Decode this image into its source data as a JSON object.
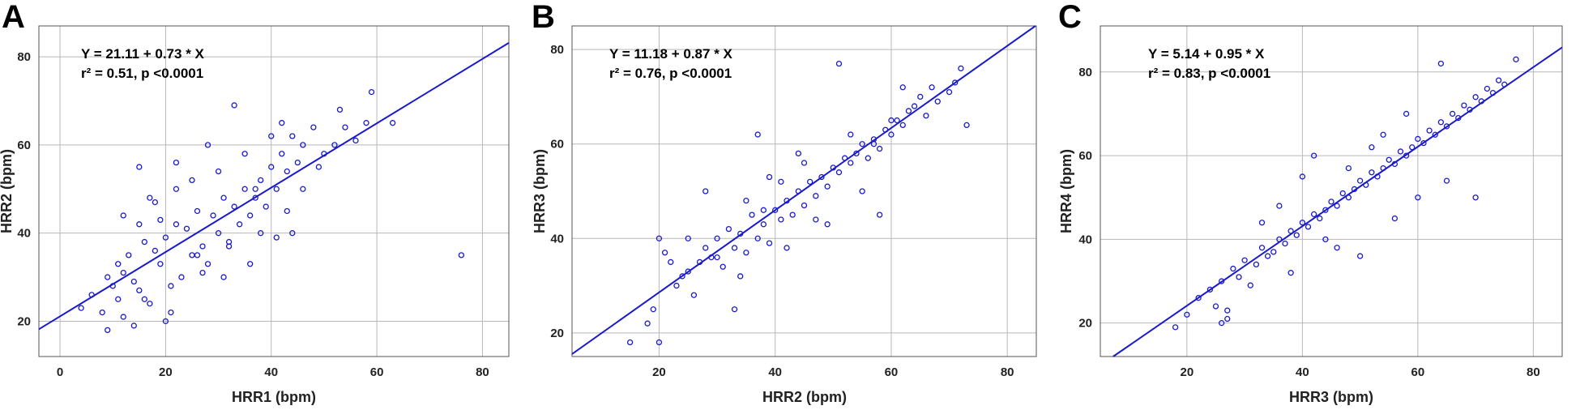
{
  "style": {
    "point_color": "#1a1acd",
    "line_color": "#1a1acd"
  },
  "chart_data": [
    {
      "type": "scatter",
      "panel_label": "A",
      "xlabel": "HRR1 (bpm)",
      "ylabel": "HRR2 (bpm)",
      "xlim": [
        -4,
        85
      ],
      "ylim": [
        12,
        87
      ],
      "xticks": [
        0,
        20,
        40,
        60,
        80
      ],
      "yticks": [
        20,
        40,
        60,
        80
      ],
      "grid": true,
      "annotations": [
        "Y = 21.11 + 0.73 * X",
        "r² = 0.51, p <0.0001"
      ],
      "fit": {
        "intercept": 21.11,
        "slope": 0.73
      },
      "points": {
        "x": [
          4,
          6,
          8,
          9,
          10,
          11,
          11,
          12,
          13,
          14,
          15,
          16,
          17,
          18,
          19,
          20,
          21,
          22,
          23,
          24,
          25,
          26,
          27,
          28,
          29,
          30,
          31,
          32,
          33,
          34,
          35,
          36,
          37,
          38,
          39,
          40,
          41,
          42,
          43,
          44,
          45,
          46,
          48,
          50,
          52,
          54,
          56,
          58,
          59,
          63,
          76,
          44,
          33,
          20,
          14,
          12,
          9,
          15,
          17,
          19,
          22,
          25,
          28,
          30,
          35,
          37,
          40,
          42,
          12,
          15,
          18,
          22,
          26,
          31,
          36,
          41,
          46,
          53,
          16,
          21,
          27,
          32,
          38,
          43,
          49
        ],
        "y": [
          23,
          26,
          22,
          30,
          28,
          25,
          33,
          31,
          35,
          29,
          27,
          38,
          24,
          36,
          33,
          39,
          22,
          42,
          30,
          41,
          35,
          45,
          37,
          33,
          44,
          40,
          48,
          38,
          46,
          42,
          50,
          44,
          48,
          52,
          46,
          55,
          50,
          58,
          54,
          62,
          56,
          60,
          64,
          58,
          60,
          64,
          61,
          65,
          72,
          65,
          35,
          40,
          69,
          20,
          19,
          21,
          18,
          55,
          48,
          43,
          56,
          52,
          60,
          54,
          58,
          50,
          62,
          65,
          44,
          42,
          47,
          50,
          35,
          30,
          33,
          39,
          50,
          68,
          25,
          28,
          31,
          37,
          40,
          45,
          55
        ]
      }
    },
    {
      "type": "scatter",
      "panel_label": "B",
      "xlabel": "HRR2 (bpm)",
      "ylabel": "HRR3 (bpm)",
      "xlim": [
        5,
        85
      ],
      "ylim": [
        15,
        85
      ],
      "xticks": [
        20,
        40,
        60,
        80
      ],
      "yticks": [
        20,
        40,
        60,
        80
      ],
      "grid": true,
      "annotations": [
        "Y = 11.18 + 0.87 * X",
        "r² = 0.76, p <0.0001"
      ],
      "fit": {
        "intercept": 11.18,
        "slope": 0.87
      },
      "points": {
        "x": [
          15,
          18,
          19,
          20,
          20,
          21,
          22,
          23,
          24,
          25,
          26,
          27,
          28,
          29,
          30,
          31,
          32,
          33,
          34,
          35,
          36,
          37,
          38,
          39,
          40,
          41,
          42,
          43,
          44,
          45,
          46,
          47,
          48,
          49,
          50,
          51,
          52,
          53,
          54,
          55,
          56,
          57,
          58,
          59,
          60,
          61,
          62,
          63,
          64,
          65,
          66,
          67,
          68,
          70,
          71,
          72,
          73,
          51,
          37,
          33,
          58,
          44,
          28,
          25,
          35,
          39,
          42,
          47,
          53,
          57,
          30,
          34,
          38,
          41,
          45,
          49,
          55,
          60,
          62
        ],
        "y": [
          18,
          22,
          25,
          40,
          18,
          37,
          35,
          30,
          32,
          33,
          28,
          35,
          38,
          36,
          40,
          34,
          42,
          38,
          41,
          37,
          45,
          40,
          43,
          39,
          46,
          44,
          48,
          45,
          50,
          47,
          52,
          49,
          53,
          51,
          55,
          54,
          57,
          56,
          58,
          60,
          57,
          61,
          59,
          63,
          62,
          65,
          64,
          67,
          68,
          70,
          66,
          72,
          69,
          71,
          73,
          76,
          64,
          77,
          62,
          25,
          45,
          58,
          50,
          40,
          48,
          53,
          38,
          44,
          62,
          60,
          36,
          32,
          46,
          52,
          56,
          43,
          50,
          65,
          72
        ]
      }
    },
    {
      "type": "scatter",
      "panel_label": "C",
      "xlabel": "HRR3 (bpm)",
      "ylabel": "HRR4 (bpm)",
      "xlim": [
        5,
        85
      ],
      "ylim": [
        12,
        91
      ],
      "xticks": [
        20,
        40,
        60,
        80
      ],
      "yticks": [
        20,
        40,
        60,
        80
      ],
      "grid": true,
      "annotations": [
        "Y = 5.14 + 0.95 * X",
        "r² = 0.83, p <0.0001"
      ],
      "fit": {
        "intercept": 5.14,
        "slope": 0.95
      },
      "points": {
        "x": [
          18,
          20,
          22,
          24,
          25,
          26,
          27,
          28,
          29,
          30,
          31,
          32,
          33,
          34,
          35,
          36,
          37,
          38,
          39,
          40,
          41,
          42,
          43,
          44,
          45,
          46,
          47,
          48,
          49,
          50,
          51,
          52,
          53,
          54,
          55,
          56,
          57,
          58,
          59,
          60,
          61,
          62,
          63,
          64,
          65,
          66,
          67,
          68,
          69,
          70,
          71,
          72,
          73,
          74,
          75,
          77,
          64,
          70,
          65,
          50,
          26,
          27,
          42,
          38,
          33,
          46,
          52,
          56,
          60,
          44,
          36,
          40,
          48,
          54,
          58
        ],
        "y": [
          19,
          22,
          26,
          28,
          24,
          30,
          21,
          33,
          31,
          35,
          29,
          34,
          38,
          36,
          37,
          40,
          39,
          42,
          41,
          44,
          43,
          46,
          45,
          47,
          49,
          48,
          51,
          50,
          52,
          54,
          53,
          56,
          55,
          57,
          59,
          58,
          61,
          60,
          62,
          64,
          63,
          66,
          65,
          68,
          67,
          70,
          69,
          72,
          71,
          74,
          73,
          76,
          75,
          78,
          77,
          83,
          82,
          50,
          54,
          36,
          20,
          23,
          60,
          32,
          44,
          38,
          62,
          45,
          50,
          40,
          48,
          55,
          57,
          65,
          70
        ]
      }
    }
  ]
}
